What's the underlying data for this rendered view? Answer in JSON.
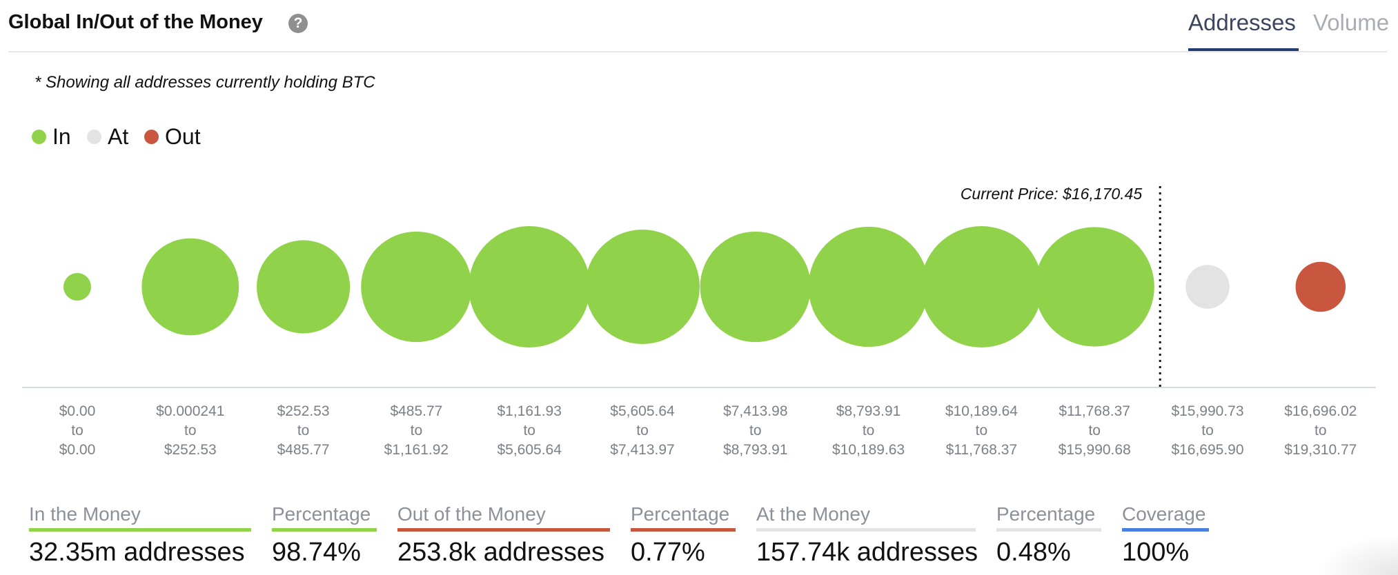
{
  "header": {
    "title": "Global In/Out of the Money",
    "help_icon": "question-circle-icon",
    "tabs": [
      {
        "label": "Addresses",
        "active": true
      },
      {
        "label": "Volume",
        "active": false
      }
    ]
  },
  "note": "* Showing all addresses currently holding BTC",
  "legend": [
    {
      "label": "In",
      "color": "#91d24b"
    },
    {
      "label": "At",
      "color": "#e3e3e3"
    },
    {
      "label": "Out",
      "color": "#c9573f"
    }
  ],
  "chart_data": {
    "type": "bubble",
    "current_price_label": "Current Price: $16,170.45",
    "bins": [
      {
        "from": "$0.00",
        "sep": "to",
        "to": "$0.00",
        "status": "In",
        "relative_size": 0.012
      },
      {
        "from": "$0.000241",
        "sep": "to",
        "to": "$252.53",
        "status": "In",
        "relative_size": 0.64
      },
      {
        "from": "$252.53",
        "sep": "to",
        "to": "$485.77",
        "status": "In",
        "relative_size": 0.59
      },
      {
        "from": "$485.77",
        "sep": "to",
        "to": "$1,161.92",
        "status": "In",
        "relative_size": 0.83
      },
      {
        "from": "$1,161.93",
        "sep": "to",
        "to": "$5,605.64",
        "status": "In",
        "relative_size": 1.0
      },
      {
        "from": "$5,605.64",
        "sep": "to",
        "to": "$7,413.97",
        "status": "In",
        "relative_size": 0.89
      },
      {
        "from": "$7,413.98",
        "sep": "to",
        "to": "$8,793.91",
        "status": "In",
        "relative_size": 0.83
      },
      {
        "from": "$8,793.91",
        "sep": "to",
        "to": "$10,189.63",
        "status": "In",
        "relative_size": 0.98
      },
      {
        "from": "$10,189.64",
        "sep": "to",
        "to": "$11,768.37",
        "status": "In",
        "relative_size": 1.0
      },
      {
        "from": "$11,768.37",
        "sep": "to",
        "to": "$15,990.68",
        "status": "In",
        "relative_size": 0.97
      },
      {
        "from": "$15,990.73",
        "sep": "to",
        "to": "$16,695.90",
        "status": "At",
        "relative_size": 0.13
      },
      {
        "from": "$16,696.02",
        "sep": "to",
        "to": "$19,310.77",
        "status": "Out",
        "relative_size": 0.17
      }
    ],
    "current_price_position_after_bin": 9
  },
  "stats": [
    {
      "label": "In the Money",
      "value": "32.35m addresses",
      "color": "#91d24b"
    },
    {
      "label": "Percentage",
      "value": "98.74%",
      "color": "#91d24b"
    },
    {
      "label": "Out of the Money",
      "value": "253.8k addresses",
      "color": "#c9573f"
    },
    {
      "label": "Percentage",
      "value": "0.77%",
      "color": "#c9573f"
    },
    {
      "label": "At the Money",
      "value": "157.74k addresses",
      "color": "#e3e3e3"
    },
    {
      "label": "Percentage",
      "value": "0.48%",
      "color": "#e3e3e3"
    },
    {
      "label": "Coverage",
      "value": "100%",
      "color": "#4a7de0"
    }
  ]
}
